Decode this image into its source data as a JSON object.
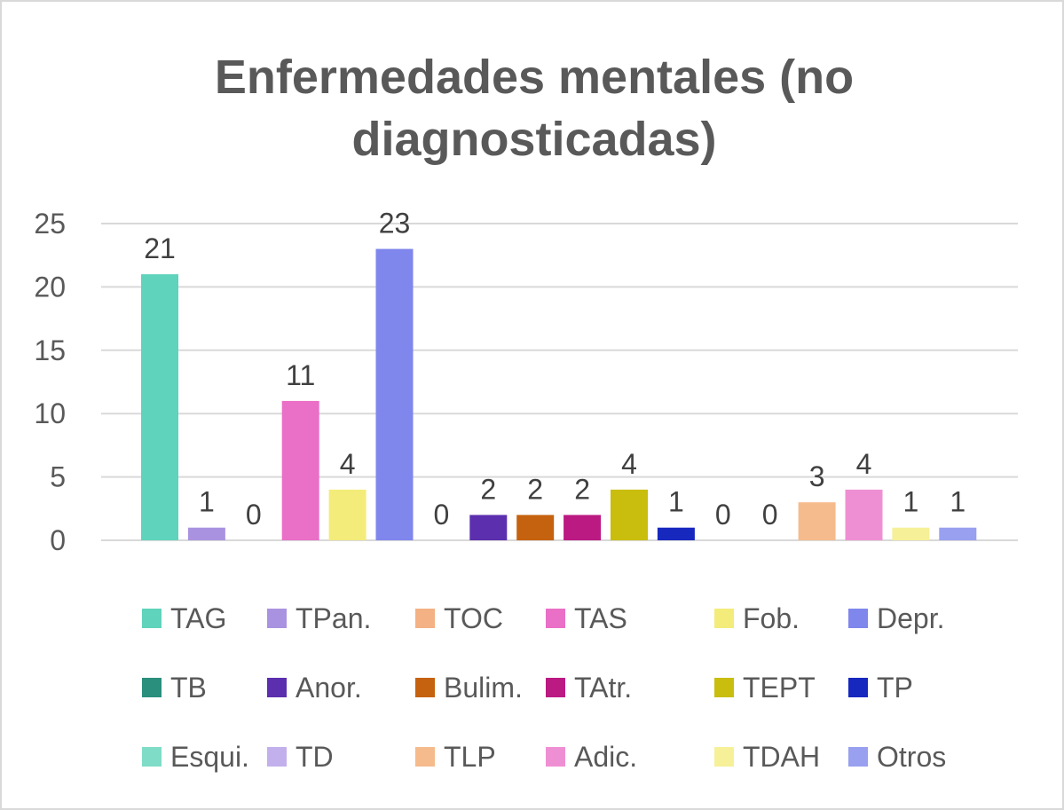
{
  "chart_data": {
    "type": "bar",
    "title": "Enfermedades mentales (no diagnosticadas)",
    "xlabel": "",
    "ylabel": "",
    "ylim": [
      0,
      25
    ],
    "yticks": [
      0,
      5,
      10,
      15,
      20,
      25
    ],
    "grid": true,
    "legend_position": "bottom",
    "series": [
      {
        "name": "TAG",
        "value": 21,
        "color": "#5fd3bb"
      },
      {
        "name": "TPan.",
        "value": 1,
        "color": "#a993e0"
      },
      {
        "name": "TOC",
        "value": 0,
        "color": "#f4b183"
      },
      {
        "name": "TAS",
        "value": 11,
        "color": "#ea6fc6"
      },
      {
        "name": "Fob.",
        "value": 4,
        "color": "#f3ec7a"
      },
      {
        "name": "Depr.",
        "value": 23,
        "color": "#7f86ec"
      },
      {
        "name": "TB",
        "value": 0,
        "color": "#2a8f7c"
      },
      {
        "name": "Anor.",
        "value": 2,
        "color": "#5b2fad"
      },
      {
        "name": "Bulim.",
        "value": 2,
        "color": "#c5620f"
      },
      {
        "name": "TAtr.",
        "value": 2,
        "color": "#bb1a82"
      },
      {
        "name": "TEPT",
        "value": 4,
        "color": "#c9bd0d"
      },
      {
        "name": "TP",
        "value": 1,
        "color": "#1728bf"
      },
      {
        "name": "Esqui.",
        "value": 0,
        "color": "#7fdcc6"
      },
      {
        "name": "TD",
        "value": 0,
        "color": "#c2b0ec"
      },
      {
        "name": "TLP",
        "value": 3,
        "color": "#f6bb8c"
      },
      {
        "name": "Adic.",
        "value": 4,
        "color": "#ef8fd3"
      },
      {
        "name": "TDAH",
        "value": 1,
        "color": "#f6f098"
      },
      {
        "name": "Otros",
        "value": 1,
        "color": "#98a0ef"
      }
    ]
  }
}
